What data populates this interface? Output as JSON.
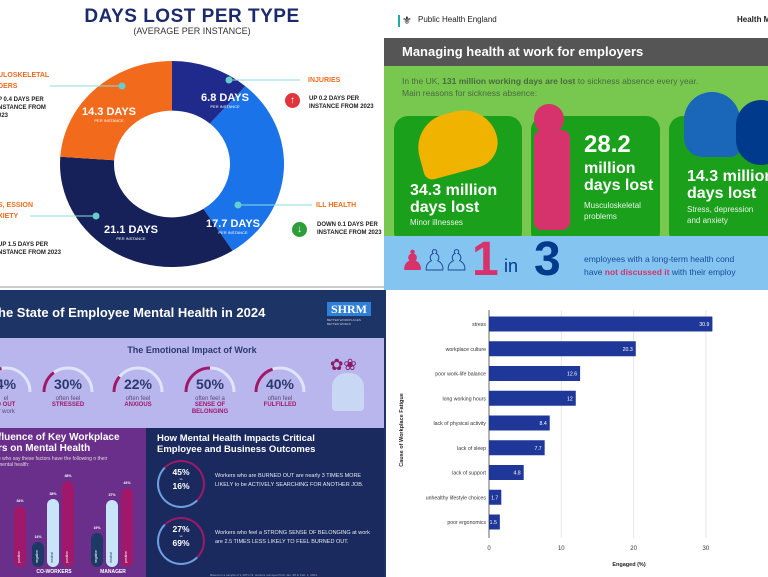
{
  "chart_data": [
    {
      "type": "pie",
      "title": "DAYS LOST PER TYPE",
      "subtitle": "(AVERAGE PER INSTANCE)",
      "slices": [
        {
          "name": "INJURIES",
          "value": 6.8,
          "label": "6.8 DAYS",
          "sublabel": "PER INSTANCE",
          "change": "UP 0.2 DAYS PER INSTANCE FROM 2023",
          "trend": "up",
          "color": "#1f2a8c"
        },
        {
          "name": "ILL HEALTH",
          "value": 17.7,
          "label": "17.7 DAYS",
          "sublabel": "PER INSTANCE",
          "change": "DOWN 0.1 DAYS PER INSTANCE FROM 2023",
          "trend": "down",
          "color": "#1a73e8"
        },
        {
          "name": "S, ESSION XIETY",
          "value": 21.1,
          "label": "21.1 DAYS",
          "sublabel": "PER INSTANCE",
          "change": "UP 1.5 DAYS PER NSTANCE FROM 2023",
          "trend": "up",
          "color": "#16215a"
        },
        {
          "name": "ULOSKELETAL DERS",
          "value": 14.3,
          "label": "14.3 DAYS",
          "sublabel": "PER INSTANCE",
          "change": "P 0.4 DAYS PER NSTANCE FROM 023",
          "trend": "up",
          "color": "#f26b1d"
        }
      ]
    },
    {
      "type": "bar",
      "orientation": "horizontal",
      "xlabel": "Engaged (%)",
      "ylabel": "Cause of Workplace Fatigue",
      "xlim": [
        0,
        31
      ],
      "xticks": [
        0,
        10,
        20,
        30
      ],
      "grid": true,
      "categories": [
        "stress",
        "workplace culture",
        "poor work-life balance",
        "long working hours",
        "lack of physical activity",
        "lack of sleep",
        "lack of support",
        "unhealthy lifestyle choices",
        "poor ergonomics"
      ],
      "values": [
        30.9,
        20.3,
        12.6,
        12,
        8.4,
        7.7,
        4.8,
        1.7,
        1.5
      ],
      "value_labels": [
        "30.9",
        "20.3",
        "12.6",
        "12",
        "8.4",
        "7.7",
        "4.8",
        "1.7",
        "1.5"
      ],
      "color": "#1e3799"
    },
    {
      "type": "bar",
      "title": "fluence of Key Workplace rs on Mental Health",
      "subtitle": "e who say these factors have the following n their mental health:",
      "categories": [
        "",
        "CO-WORKERS",
        "MANAGER"
      ],
      "series": [
        {
          "name": "negative",
          "values": [
            null,
            14,
            19
          ]
        },
        {
          "name": "neutral",
          "values": [
            null,
            38,
            37
          ]
        },
        {
          "name": "positive",
          "values": [
            34,
            48,
            44
          ]
        }
      ]
    }
  ],
  "phe": {
    "org": "Public Health England",
    "right_header": "Health M",
    "title": "Managing health at work for employers",
    "intro_pre": "In the UK, ",
    "intro_bold": "131 million working days are lost",
    "intro_post": " to sickness absence every year.",
    "intro2": "Main reasons for sickness absence:",
    "cards": [
      {
        "num": "34.3 million",
        "unit": "days lost",
        "cap": "Minor illnesses"
      },
      {
        "num": "28.2",
        "unit": "million",
        "unit2": "days lost",
        "cap": "Musculoskeletal problems"
      },
      {
        "num": "14.3 million",
        "unit": "days lost",
        "cap": "Stress, depression and anxiety"
      }
    ],
    "one": "1",
    "in": "in",
    "three": "3",
    "stat_l1": "employees with a long-term health cond",
    "stat_l2_pre": "have ",
    "stat_l2_red": "not discussed it",
    "stat_l2_post": " with their employ",
    "colors": {
      "green": "#78c850",
      "card": "#1aa01a",
      "pink": "#d6336c",
      "navy": "#003a8c"
    }
  },
  "shrm": {
    "title": "he State of Employee Mental Health in 2024",
    "logo": "SHRM",
    "logo_tag": "BETTER WORKPLACES BETTER WORLD",
    "emotional_title": "The Emotional Impact of Work",
    "gauges": [
      {
        "pct": "4%",
        "of": "el",
        "em": "D OUT",
        "extra": "ir work",
        "value": 44
      },
      {
        "pct": "30%",
        "of": "often feel",
        "em": "STRESSED",
        "value": 30
      },
      {
        "pct": "22%",
        "of": "often feel",
        "em": "ANXIOUS",
        "value": 22
      },
      {
        "pct": "50%",
        "of": "often feel a",
        "em": "SENSE OF BELONGING",
        "value": 50
      },
      {
        "pct": "40%",
        "of": "often feel",
        "em": "FULFILLED",
        "value": 40
      }
    ],
    "impact_title": "How Mental Health Impacts Critical Employee and Business Outcomes",
    "outcomes": [
      {
        "a": "45%",
        "vs": "vs",
        "b": "16%",
        "text": "Workers who are BURNED OUT are nearly 3 TIMES MORE LIKELY to be ACTIVELY SEARCHING FOR ANOTHER JOB."
      },
      {
        "a": "27%",
        "vs": "vs",
        "b": "69%",
        "text": "Workers who feel a STRONG SENSE OF BELONGING at work are 2.5 TIMES LESS LIKELY TO FEEL BURNED OUT."
      }
    ],
    "footnote": "Based on a sample of 1,405 U.S. workers surveyed from Jan. 30 to Feb. 1, 2024."
  }
}
